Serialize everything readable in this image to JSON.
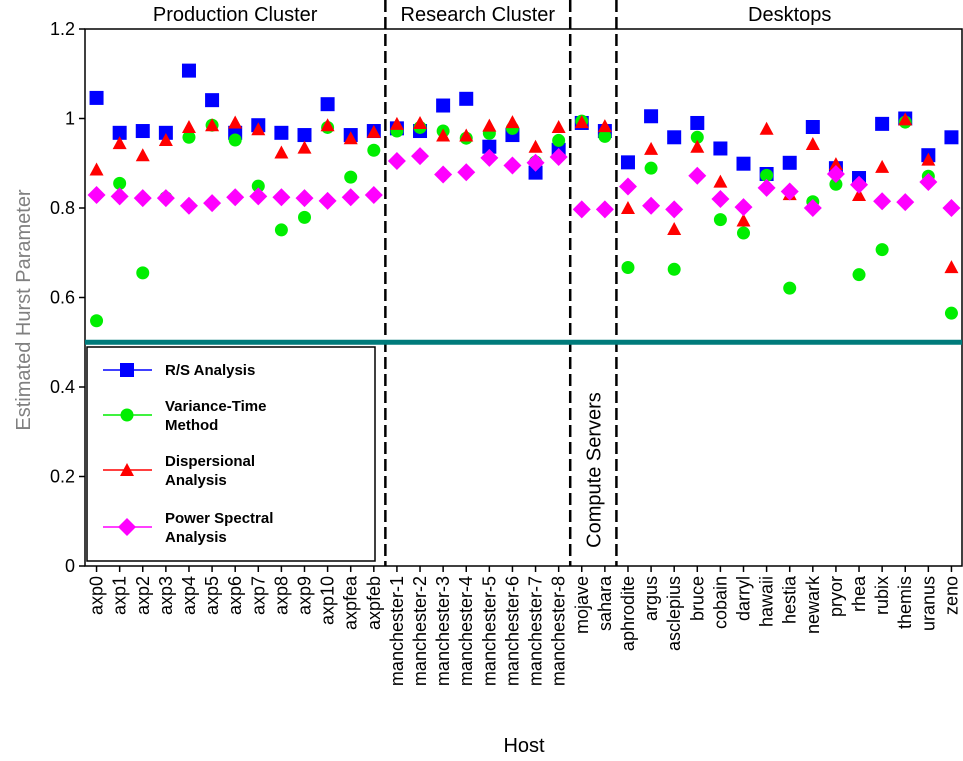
{
  "chart_data": {
    "type": "scatter",
    "xlabel": "Host",
    "ylabel": "Estimated Hurst Parameter",
    "ylim": [
      0,
      1.2
    ],
    "yticks": [
      "0",
      "0.2",
      "0.4",
      "0.6",
      "0.8",
      "1",
      "1.2"
    ],
    "reference_line": {
      "y": 0.5,
      "color": "#007b7b"
    },
    "grid": false,
    "legend_position": "lower-left",
    "categories": [
      "axp0",
      "axp1",
      "axp2",
      "axp3",
      "axp4",
      "axp5",
      "axp6",
      "axp7",
      "axp8",
      "axp9",
      "axp10",
      "axpfea",
      "axpfeb",
      "manchester-1",
      "manchester-2",
      "manchester-3",
      "manchester-4",
      "manchester-5",
      "manchester-6",
      "manchester-7",
      "manchester-8",
      "mojave",
      "sahara",
      "aphrodite",
      "argus",
      "asclepius",
      "bruce",
      "cobain",
      "darryl",
      "hawaii",
      "hestia",
      "newark",
      "pryor",
      "rhea",
      "rubix",
      "themis",
      "uranus",
      "zeno"
    ],
    "groups": [
      {
        "label": "Production Cluster",
        "start": 0,
        "end": 12
      },
      {
        "label": "Research Cluster",
        "start": 13,
        "end": 20
      },
      {
        "label": "Compute Servers",
        "start": 21,
        "end": 22,
        "vertical": true
      },
      {
        "label": "Desktops",
        "start": 23,
        "end": 37
      }
    ],
    "series": [
      {
        "name": "R/S Analysis",
        "color": "#0000ff",
        "marker": "square",
        "values": [
          1.046,
          0.968,
          0.972,
          0.968,
          1.107,
          1.041,
          0.968,
          0.985,
          0.968,
          0.963,
          1.032,
          0.963,
          0.972,
          0.978,
          0.972,
          1.029,
          1.044,
          0.937,
          0.963,
          0.879,
          0.93,
          0.99,
          0.972,
          0.902,
          1.005,
          0.958,
          0.99,
          0.933,
          0.899,
          0.876,
          0.901,
          0.981,
          0.889,
          0.867,
          0.988,
          1.0,
          0.918,
          0.958
        ]
      },
      {
        "name": "Variance-Time Method",
        "color": "#00ee00",
        "marker": "circle",
        "values": [
          0.548,
          0.855,
          0.655,
          0.823,
          0.958,
          0.985,
          0.952,
          0.849,
          0.751,
          0.779,
          0.98,
          0.869,
          0.929,
          0.972,
          0.98,
          0.972,
          0.956,
          0.967,
          0.978,
          0.903,
          0.951,
          0.994,
          0.96,
          0.667,
          0.889,
          0.663,
          0.958,
          0.774,
          0.744,
          0.873,
          0.621,
          0.814,
          0.853,
          0.651,
          0.707,
          0.992,
          0.871,
          0.565
        ]
      },
      {
        "name": "Dispersional Analysis",
        "color": "#ff0000",
        "marker": "triangle",
        "values": [
          0.886,
          0.945,
          0.918,
          0.952,
          0.981,
          0.985,
          0.991,
          0.976,
          0.924,
          0.935,
          0.985,
          0.956,
          0.97,
          0.988,
          0.99,
          0.962,
          0.962,
          0.984,
          0.992,
          0.937,
          0.981,
          0.992,
          0.983,
          0.8,
          0.932,
          0.753,
          0.937,
          0.859,
          0.772,
          0.977,
          0.831,
          0.943,
          0.898,
          0.829,
          0.892,
          0.998,
          0.908,
          0.668
        ]
      },
      {
        "name": "Power Spectral Analysis",
        "color": "#ff00ff",
        "marker": "diamond",
        "values": [
          0.829,
          0.826,
          0.822,
          0.822,
          0.805,
          0.811,
          0.824,
          0.826,
          0.824,
          0.822,
          0.816,
          0.824,
          0.829,
          0.905,
          0.916,
          0.875,
          0.88,
          0.912,
          0.895,
          0.901,
          0.914,
          0.797,
          0.797,
          0.848,
          0.805,
          0.797,
          0.872,
          0.82,
          0.802,
          0.845,
          0.837,
          0.8,
          0.876,
          0.852,
          0.815,
          0.813,
          0.858,
          0.8
        ]
      }
    ],
    "legend": [
      {
        "label": "R/S Analysis",
        "marker": "square",
        "color": "#0000ff"
      },
      {
        "label": "Variance-Time\nMethod",
        "marker": "circle",
        "color": "#00ee00"
      },
      {
        "label": "Dispersional\nAnalysis",
        "marker": "triangle",
        "color": "#ff0000"
      },
      {
        "label": "Power Spectral\nAnalysis",
        "marker": "diamond",
        "color": "#ff00ff"
      }
    ]
  }
}
